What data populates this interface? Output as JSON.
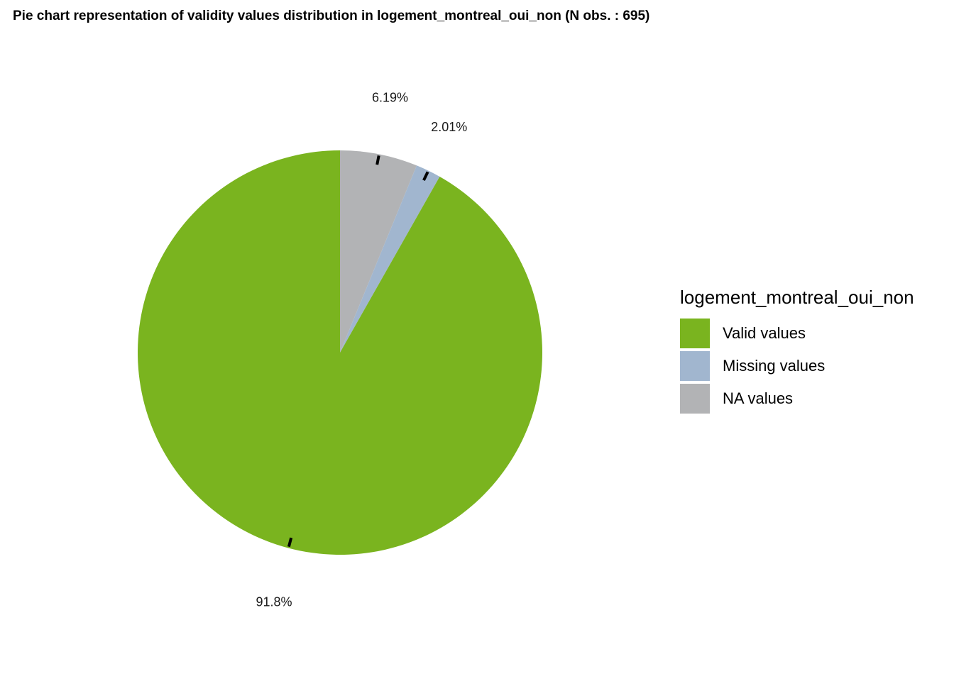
{
  "chart_data": {
    "type": "pie",
    "title": "Pie chart representation of validity values distribution in logement_montreal_oui_non (N obs. : 695)",
    "legend_title": "logement_montreal_oui_non",
    "legend_position": "right",
    "slices": [
      {
        "name": "NA values",
        "value": 6.19,
        "label": "6.19%",
        "color": "#b2b3b5"
      },
      {
        "name": "Missing values",
        "value": 2.01,
        "label": "2.01%",
        "color": "#a1b6cf"
      },
      {
        "name": "Valid values",
        "value": 91.8,
        "label": "91.8%",
        "color": "#7ab41f"
      }
    ],
    "legend_items": [
      {
        "name": "Valid values",
        "color": "#7ab41f"
      },
      {
        "name": "Missing values",
        "color": "#a1b6cf"
      },
      {
        "name": "NA values",
        "color": "#b2b3b5"
      }
    ]
  }
}
